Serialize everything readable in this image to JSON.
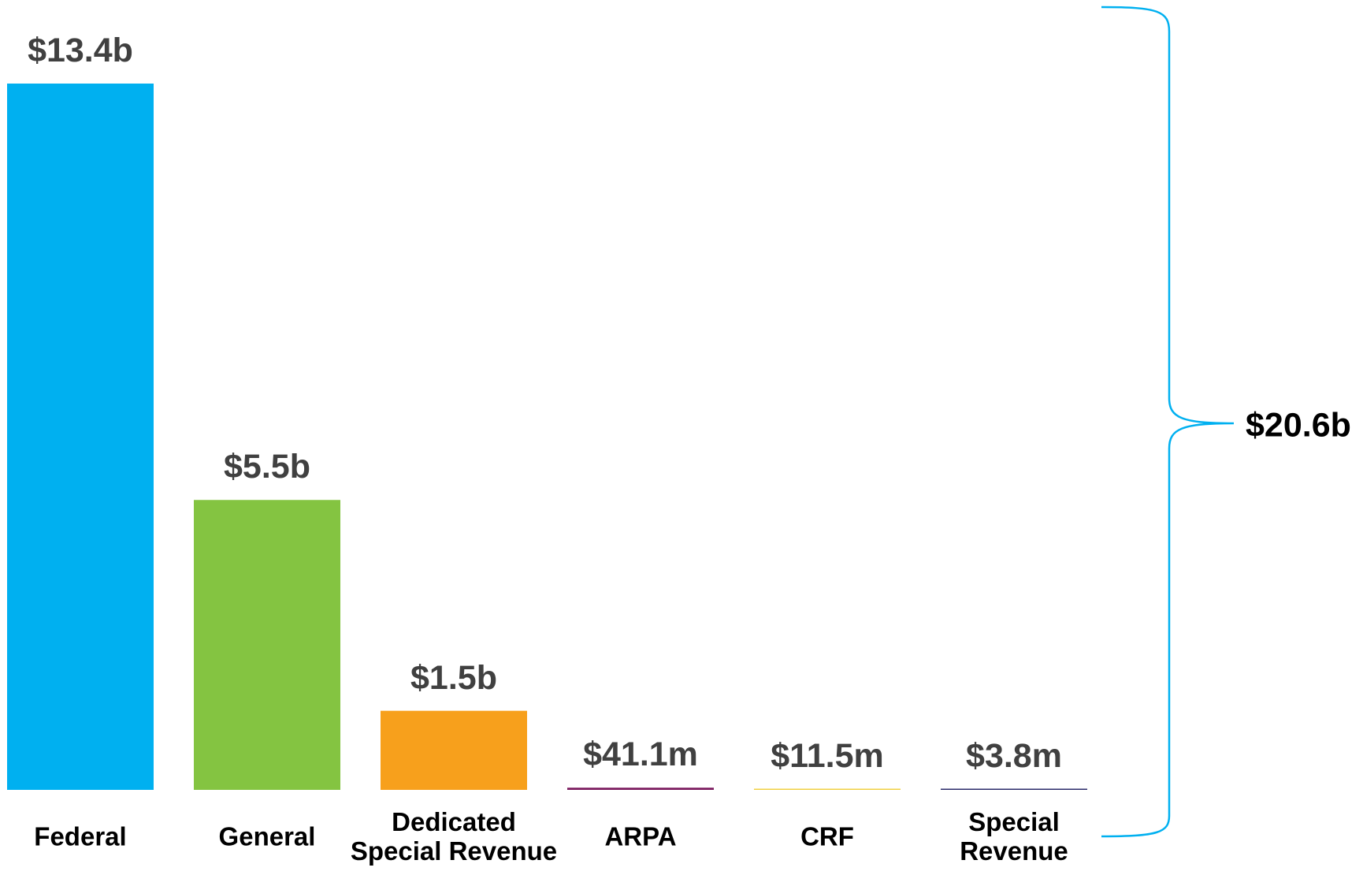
{
  "chart_data": {
    "type": "bar",
    "categories": [
      "Federal",
      "General",
      "Dedicated\nSpecial Revenue",
      "ARPA",
      "CRF",
      "Special\nRevenue"
    ],
    "values": [
      13.4,
      5.5,
      1.5,
      0.0411,
      0.0115,
      0.0038
    ],
    "value_labels": [
      "$13.4b",
      "$5.5b",
      "$1.5b",
      "$41.1m",
      "$11.5m",
      "$3.8m"
    ],
    "colors": [
      "#00b0f0",
      "#84c441",
      "#f7a01c",
      "#7b1a5e",
      "#f0d040",
      "#2a2a6a"
    ],
    "annotation": "$20.6b"
  }
}
